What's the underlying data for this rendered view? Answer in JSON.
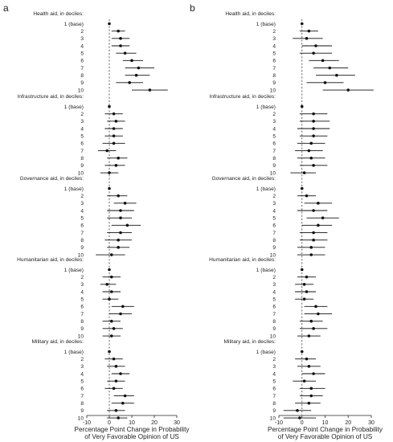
{
  "chart_data": [
    {
      "type": "scatter",
      "panel_label": "a",
      "xlabel": [
        "Percentage Point Change in Probability",
        "of Very Favorable Opinion of US"
      ],
      "xlim": [
        -10,
        30
      ],
      "xticks": [
        -10,
        0,
        10,
        20,
        30
      ],
      "reference_line": 0,
      "groups": [
        {
          "title": "Health aid, in deciles:",
          "labels": [
            "1 (base)",
            "2",
            "3",
            "4",
            "5",
            "6",
            "7",
            "8",
            "9",
            "10"
          ],
          "estimates": [
            0,
            4,
            5,
            5,
            7,
            10,
            13,
            12,
            9,
            18
          ],
          "ci_low": [
            0,
            1,
            1,
            1,
            3,
            6,
            7,
            7,
            3,
            10
          ],
          "ci_high": [
            0,
            7,
            9,
            9,
            12,
            15,
            20,
            18,
            15,
            26
          ]
        },
        {
          "title": "Infrastructure aid, in deciles:",
          "labels": [
            "1 (base)",
            "2",
            "3",
            "4",
            "5",
            "6",
            "7",
            "8",
            "9",
            "10"
          ],
          "estimates": [
            0,
            2,
            3,
            2,
            2,
            2,
            -1,
            4,
            3,
            0
          ],
          "ci_low": [
            0,
            -2,
            -1,
            -2,
            -2,
            -3,
            -5,
            -1,
            -2,
            -4
          ],
          "ci_high": [
            0,
            6,
            7,
            6,
            6,
            7,
            3,
            8,
            7,
            4
          ]
        },
        {
          "title": "Governance aid, in deciles:",
          "labels": [
            "1 (base)",
            "2",
            "3",
            "4",
            "5",
            "6",
            "7",
            "8",
            "9",
            "10"
          ],
          "estimates": [
            0,
            4,
            7,
            5,
            5,
            8,
            5,
            4,
            4,
            1
          ],
          "ci_low": [
            0,
            -1,
            2,
            -1,
            -1,
            1,
            -1,
            -2,
            -1,
            -6
          ],
          "ci_high": [
            0,
            8,
            12,
            11,
            10,
            14,
            10,
            10,
            9,
            7
          ]
        },
        {
          "title": "Humanitarian aid, in deciles:",
          "labels": [
            "1 (base)",
            "2",
            "3",
            "4",
            "5",
            "6",
            "7",
            "8",
            "9",
            "10"
          ],
          "estimates": [
            0,
            1,
            -1,
            1,
            0,
            6,
            5,
            1,
            2,
            1
          ],
          "ci_low": [
            0,
            -3,
            -4,
            -3,
            -3,
            1,
            0,
            -3,
            -3,
            -3
          ],
          "ci_high": [
            0,
            5,
            3,
            5,
            4,
            11,
            10,
            5,
            6,
            5
          ]
        },
        {
          "title": "Military aid, in deciles:",
          "labels": [
            "1 (base)",
            "2",
            "3",
            "4",
            "5",
            "6",
            "7",
            "8",
            "9",
            "10"
          ],
          "estimates": [
            0,
            2,
            3,
            5,
            3,
            2,
            7,
            6,
            3,
            4
          ],
          "ci_low": [
            0,
            -2,
            -1,
            1,
            -1,
            -2,
            2,
            1,
            -1,
            -1
          ],
          "ci_high": [
            0,
            6,
            7,
            9,
            7,
            6,
            11,
            11,
            7,
            8
          ]
        }
      ]
    },
    {
      "type": "scatter",
      "panel_label": "b",
      "xlabel": [
        "Percentage Point Change in Probability",
        "of Very Favorable Opinion of US"
      ],
      "xlim": [
        -10,
        30
      ],
      "xticks": [
        -10,
        0,
        10,
        20,
        30
      ],
      "reference_line": 0,
      "groups": [
        {
          "title": "Health aid, in deciles:",
          "labels": [
            "1 (base)",
            "2",
            "3",
            "4",
            "5",
            "6",
            "7",
            "8",
            "9",
            "10"
          ],
          "estimates": [
            0,
            3,
            2,
            6,
            5,
            9,
            12,
            15,
            10,
            20
          ],
          "ci_low": [
            0,
            -1,
            -4,
            0,
            -1,
            3,
            5,
            6,
            2,
            9
          ],
          "ci_high": [
            0,
            7,
            9,
            13,
            13,
            16,
            20,
            23,
            18,
            31
          ]
        },
        {
          "title": "Infrastructure aid, in deciles:",
          "labels": [
            "1 (base)",
            "2",
            "3",
            "4",
            "5",
            "6",
            "7",
            "8",
            "9",
            "10"
          ],
          "estimates": [
            0,
            5,
            5,
            5,
            5,
            4,
            3,
            4,
            5,
            1
          ],
          "ci_low": [
            0,
            -1,
            -1,
            -2,
            -1,
            -2,
            -3,
            -2,
            -1,
            -5
          ],
          "ci_high": [
            0,
            11,
            12,
            12,
            11,
            10,
            9,
            10,
            11,
            6
          ]
        },
        {
          "title": "Governance aid, in deciles:",
          "labels": [
            "1 (base)",
            "2",
            "3",
            "4",
            "5",
            "6",
            "7",
            "8",
            "9",
            "10"
          ],
          "estimates": [
            0,
            2,
            7,
            5,
            9,
            7,
            5,
            5,
            4,
            4
          ],
          "ci_low": [
            0,
            -2,
            1,
            -2,
            2,
            0,
            -1,
            -1,
            -2,
            -2
          ],
          "ci_high": [
            0,
            6,
            13,
            11,
            16,
            13,
            11,
            11,
            10,
            10
          ]
        },
        {
          "title": "Humanitarian aid, in deciles:",
          "labels": [
            "1 (base)",
            "2",
            "3",
            "4",
            "5",
            "6",
            "7",
            "8",
            "9",
            "10"
          ],
          "estimates": [
            0,
            2,
            1,
            2,
            1,
            6,
            7,
            4,
            5,
            3
          ],
          "ci_low": [
            0,
            -2,
            -3,
            -3,
            -3,
            1,
            1,
            -1,
            -1,
            -2
          ],
          "ci_high": [
            0,
            6,
            5,
            6,
            5,
            11,
            13,
            9,
            11,
            8
          ]
        },
        {
          "title": "Military aid, in deciles:",
          "labels": [
            "1 (base)",
            "2",
            "3",
            "4",
            "5",
            "6",
            "7",
            "8",
            "9",
            "10"
          ],
          "estimates": [
            0,
            2,
            3,
            5,
            1,
            4,
            4,
            3,
            -2,
            -1
          ],
          "ci_low": [
            0,
            -3,
            -2,
            0,
            -4,
            -1,
            -1,
            -3,
            -8,
            -8
          ],
          "ci_high": [
            0,
            6,
            8,
            10,
            6,
            10,
            9,
            8,
            4,
            6
          ]
        }
      ]
    }
  ]
}
